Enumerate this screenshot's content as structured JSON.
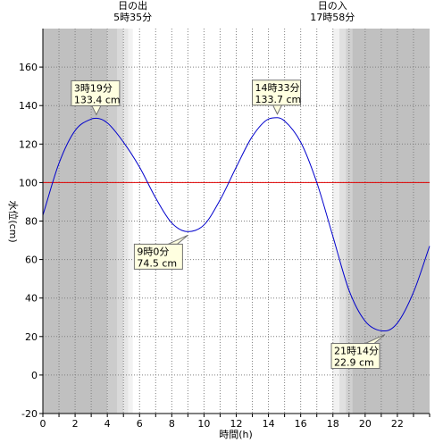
{
  "chart_data": {
    "type": "line",
    "xlabel": "時間(h)",
    "ylabel": "水位(cm)",
    "xlim": [
      0,
      24
    ],
    "ylim": [
      -20,
      180
    ],
    "x_ticks": [
      0,
      2,
      4,
      6,
      8,
      10,
      12,
      14,
      16,
      18,
      20,
      22
    ],
    "y_ticks": [
      -20,
      0,
      20,
      40,
      60,
      80,
      100,
      120,
      140,
      160
    ],
    "reference_line": {
      "y": 100,
      "color": "#e00000"
    },
    "line_color": "#0000cc",
    "series": [
      {
        "x": [
          0,
          1,
          2,
          3,
          3.32,
          4,
          5,
          6,
          7,
          8,
          9,
          10,
          11,
          12,
          13,
          14,
          14.55,
          15,
          16,
          17,
          18,
          19,
          20,
          21,
          21.23,
          22,
          23,
          24
        ],
        "y": [
          83,
          110,
          127,
          133,
          133.4,
          131,
          121,
          108,
          92,
          79,
          74.5,
          78,
          91,
          108,
          124,
          133,
          133.7,
          132,
          121,
          100,
          72,
          44,
          28,
          23,
          22.9,
          27,
          43,
          67
        ]
      }
    ],
    "annotations": [
      {
        "time_label": "3時19分",
        "value_label": "133.4 cm",
        "x": 3.32,
        "y": 133.4
      },
      {
        "time_label": "9時0分",
        "value_label": "74.5 cm",
        "x": 9.0,
        "y": 74.5
      },
      {
        "time_label": "14時33分",
        "value_label": "133.7 cm",
        "x": 14.55,
        "y": 133.7
      },
      {
        "time_label": "21時14分",
        "value_label": "22.9 cm",
        "x": 21.23,
        "y": 22.9
      }
    ],
    "sunrise": {
      "label": "日の出",
      "time": "5時35分",
      "x": 5.58
    },
    "sunset": {
      "label": "日の入",
      "time": "17時58分",
      "x": 17.97
    },
    "night_color": "#c0c0c0",
    "twilight_bands": [
      {
        "from": 4.0,
        "to": 4.6,
        "color": "#cccccc"
      },
      {
        "from": 4.6,
        "to": 5.0,
        "color": "#d9d9d9"
      },
      {
        "from": 5.0,
        "to": 5.3,
        "color": "#e6e6e6"
      },
      {
        "from": 5.3,
        "to": 5.58,
        "color": "#f2f2f2"
      },
      {
        "from": 17.97,
        "to": 18.4,
        "color": "#f2f2f2"
      },
      {
        "from": 18.4,
        "to": 18.8,
        "color": "#e0e0e0"
      },
      {
        "from": 18.8,
        "to": 19.2,
        "color": "#d0d0d0"
      }
    ],
    "night_ranges": [
      {
        "from": 0,
        "to": 4.0
      },
      {
        "from": 19.2,
        "to": 24
      }
    ]
  }
}
